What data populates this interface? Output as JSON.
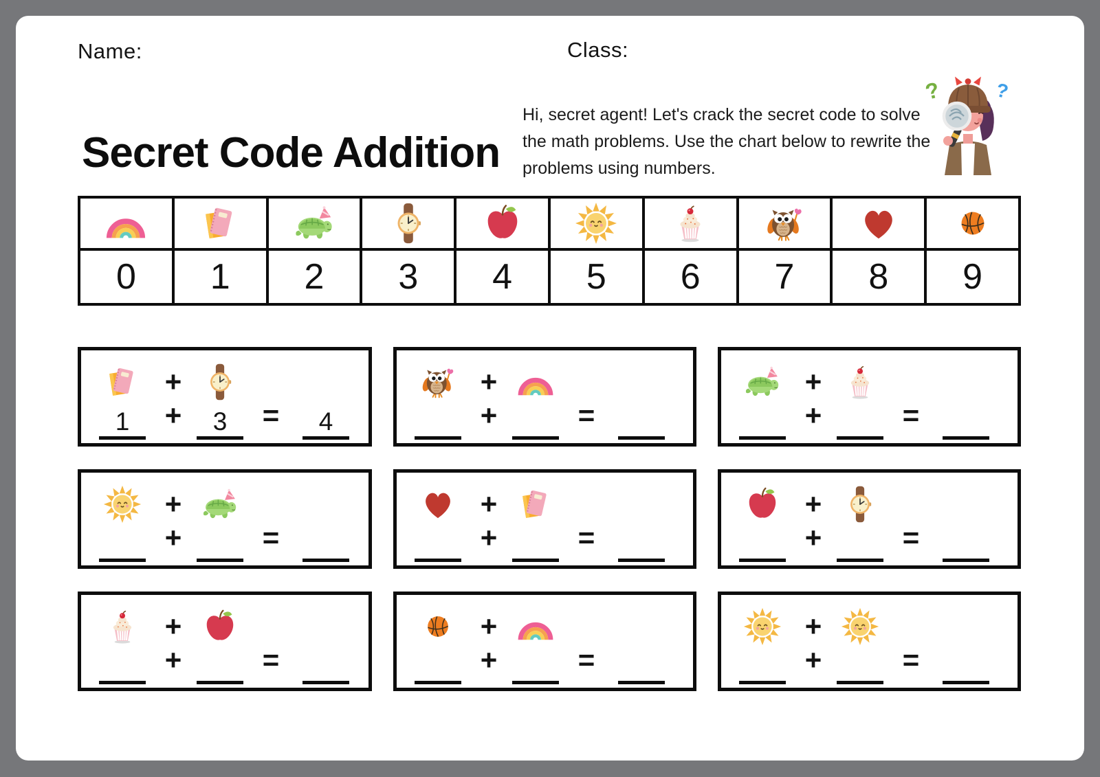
{
  "page": {
    "name_label": "Name:",
    "class_label": "Class:",
    "title": "Secret Code Addition",
    "instructions": "Hi, secret agent! Let's crack the secret code to solve the math problems. Use the chart below to rewrite the problems using numbers.",
    "mascot_icon": "detective-girl",
    "background_color": "#76777a",
    "paper_color": "#ffffff"
  },
  "code_chart": {
    "entries": [
      {
        "icon": "rainbow",
        "digit": "0"
      },
      {
        "icon": "notebook",
        "digit": "1"
      },
      {
        "icon": "turtle",
        "digit": "2"
      },
      {
        "icon": "watch",
        "digit": "3"
      },
      {
        "icon": "apple",
        "digit": "4"
      },
      {
        "icon": "sun",
        "digit": "5"
      },
      {
        "icon": "cupcake",
        "digit": "6"
      },
      {
        "icon": "owl",
        "digit": "7"
      },
      {
        "icon": "heart",
        "digit": "8"
      },
      {
        "icon": "basketball",
        "digit": "9"
      }
    ]
  },
  "symbols": {
    "plus": "+",
    "equals": "="
  },
  "problems": [
    {
      "icon_a": "notebook",
      "icon_b": "watch",
      "answers": {
        "a": "1",
        "b": "3",
        "sum": "4"
      }
    },
    {
      "icon_a": "owl",
      "icon_b": "rainbow",
      "answers": {
        "a": "",
        "b": "",
        "sum": ""
      }
    },
    {
      "icon_a": "turtle",
      "icon_b": "cupcake",
      "answers": {
        "a": "",
        "b": "",
        "sum": ""
      }
    },
    {
      "icon_a": "sun",
      "icon_b": "turtle",
      "answers": {
        "a": "",
        "b": "",
        "sum": ""
      }
    },
    {
      "icon_a": "heart",
      "icon_b": "notebook",
      "answers": {
        "a": "",
        "b": "",
        "sum": ""
      }
    },
    {
      "icon_a": "apple",
      "icon_b": "watch",
      "answers": {
        "a": "",
        "b": "",
        "sum": ""
      }
    },
    {
      "icon_a": "cupcake",
      "icon_b": "apple",
      "answers": {
        "a": "",
        "b": "",
        "sum": ""
      }
    },
    {
      "icon_a": "basketball",
      "icon_b": "rainbow",
      "answers": {
        "a": "",
        "b": "",
        "sum": ""
      }
    },
    {
      "icon_a": "sun",
      "icon_b": "sun",
      "answers": {
        "a": "",
        "b": "",
        "sum": ""
      }
    }
  ]
}
